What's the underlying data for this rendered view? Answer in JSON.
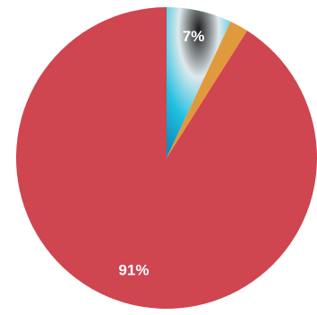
{
  "chart_data": {
    "type": "pie",
    "title": "",
    "start_angle_deg": 0,
    "direction": "counterclockwise",
    "slices": [
      {
        "label": "91%",
        "value": 91,
        "color": "#cf4550",
        "show_label": true
      },
      {
        "label": "",
        "value": 2,
        "color": "#e09a3c",
        "show_label": false
      },
      {
        "label": "7%",
        "value": 7,
        "color": "#16b7d8",
        "accent": "#101010",
        "show_label": true
      }
    ],
    "legend": "none",
    "grid": false
  }
}
